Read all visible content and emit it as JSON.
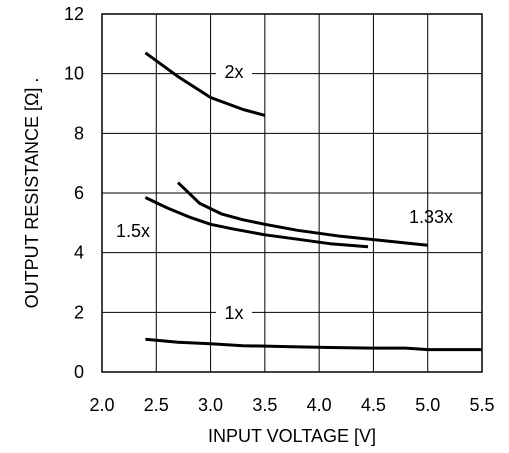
{
  "chart_data": {
    "type": "line",
    "title": "",
    "xlabel": "INPUT VOLTAGE [V]",
    "ylabel": "OUTPUT RESISTANCE [Ω] .",
    "xlim": [
      2.0,
      5.5
    ],
    "ylim": [
      0,
      12
    ],
    "x_ticks": [
      "2.0",
      "2.5",
      "3.0",
      "3.5",
      "4.0",
      "4.5",
      "5.0",
      "5.5"
    ],
    "y_ticks": [
      "0",
      "2",
      "4",
      "6",
      "8",
      "10",
      "12"
    ],
    "grid": true,
    "series": [
      {
        "name": "2x",
        "x": [
          2.4,
          2.7,
          3.0,
          3.3,
          3.5
        ],
        "y": [
          10.7,
          9.9,
          9.2,
          8.8,
          8.6
        ]
      },
      {
        "name": "1.5x",
        "x": [
          2.4,
          2.6,
          2.8,
          3.0,
          3.2,
          3.5,
          3.8,
          4.1,
          4.45
        ],
        "y": [
          5.85,
          5.5,
          5.2,
          4.95,
          4.8,
          4.6,
          4.45,
          4.3,
          4.2
        ]
      },
      {
        "name": "1.33x",
        "x": [
          2.7,
          2.9,
          3.1,
          3.3,
          3.5,
          3.8,
          4.2,
          4.6,
          5.0
        ],
        "y": [
          6.35,
          5.65,
          5.3,
          5.1,
          4.95,
          4.75,
          4.55,
          4.4,
          4.25
        ]
      },
      {
        "name": "1x",
        "x": [
          2.4,
          2.7,
          3.0,
          3.3,
          3.7,
          4.1,
          4.5,
          4.8,
          5.0,
          5.5
        ],
        "y": [
          1.1,
          1.0,
          0.95,
          0.88,
          0.85,
          0.82,
          0.8,
          0.8,
          0.75,
          0.75
        ]
      }
    ]
  }
}
